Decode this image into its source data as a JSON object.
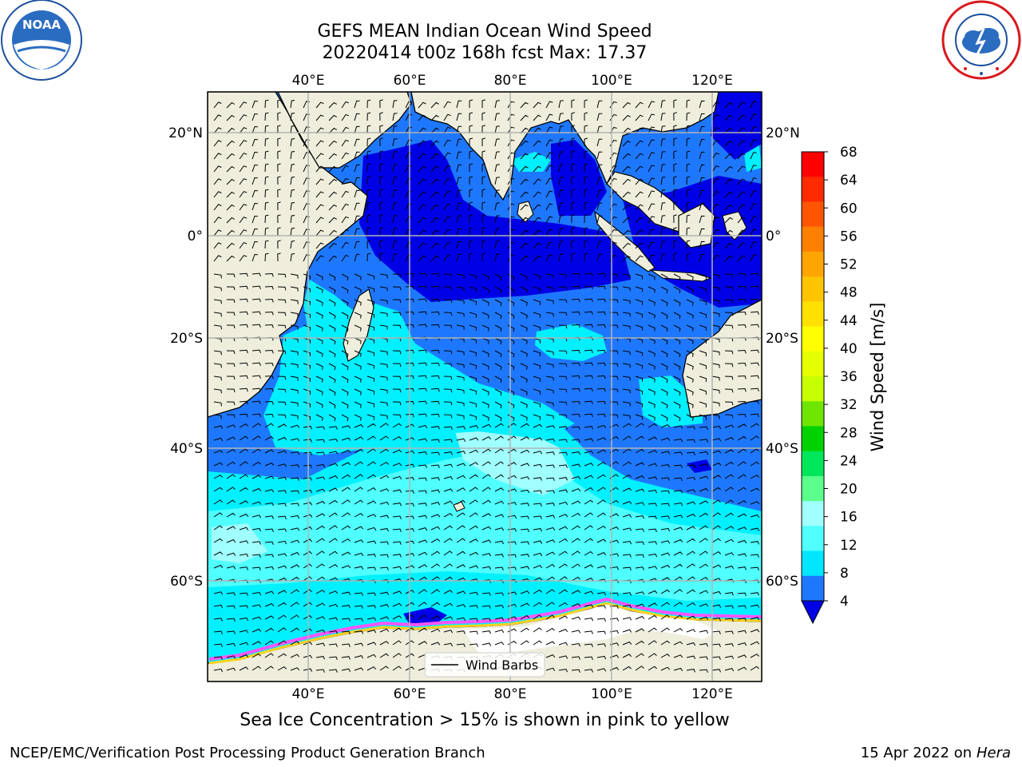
{
  "title_line1": "GEFS MEAN Indian Ocean Wind Speed",
  "title_line2": "20220414 t00z 168h fcst   Max: 17.37",
  "caption": "Sea Ice Concentration > 15% is shown in pink to yellow",
  "footer_left": "NCEP/EMC/Verification Post Processing Product Generation Branch",
  "footer_date": "15 Apr 2022 on ",
  "footer_host": "Hera",
  "logos": {
    "left": "NOAA",
    "left_ring": "NATIONAL OCEANIC AND ATMOSPHERIC ADMINISTRATION · U.S. DEPARTMENT OF COMMERCE",
    "right_ring": "NATIONAL WEATHER SERVICE"
  },
  "map": {
    "lon_ticks": [
      "40°E",
      "60°E",
      "80°E",
      "100°E",
      "120°E"
    ],
    "lat_ticks_left": [
      "20°N",
      "0°",
      "20°S",
      "40°S",
      "60°S"
    ],
    "lat_ticks_right": [
      "20°N",
      "0°",
      "20°S",
      "40°S",
      "60°S"
    ],
    "legend_label": "Wind Barbs"
  },
  "colorbar": {
    "label": "Wind Speed [m/s]",
    "ticks": [
      "68",
      "64",
      "60",
      "56",
      "52",
      "48",
      "44",
      "40",
      "36",
      "32",
      "28",
      "24",
      "20",
      "16",
      "12",
      "8",
      "4"
    ],
    "colors_top_to_bottom": [
      "#ff0000",
      "#ff2a00",
      "#ff5500",
      "#ff7f00",
      "#ffa500",
      "#ffc400",
      "#ffe000",
      "#ffff00",
      "#e6ff00",
      "#c8ff00",
      "#6ee600",
      "#00d200",
      "#00e65a",
      "#5aff8c",
      "#a0ffff",
      "#50ffff",
      "#00e6ff",
      "#1e78ff"
    ],
    "extend_color": "#0000e6"
  },
  "colors": {
    "land": "#efeedc",
    "ice_pink": "#ff55ff",
    "ice_yellow": "#ffd21e",
    "c_dark": "#0000e6",
    "c_mid": "#1e78ff",
    "c_cyan": "#00f0ff",
    "c_light": "#50ffff",
    "c_pale": "#a0ffff"
  }
}
